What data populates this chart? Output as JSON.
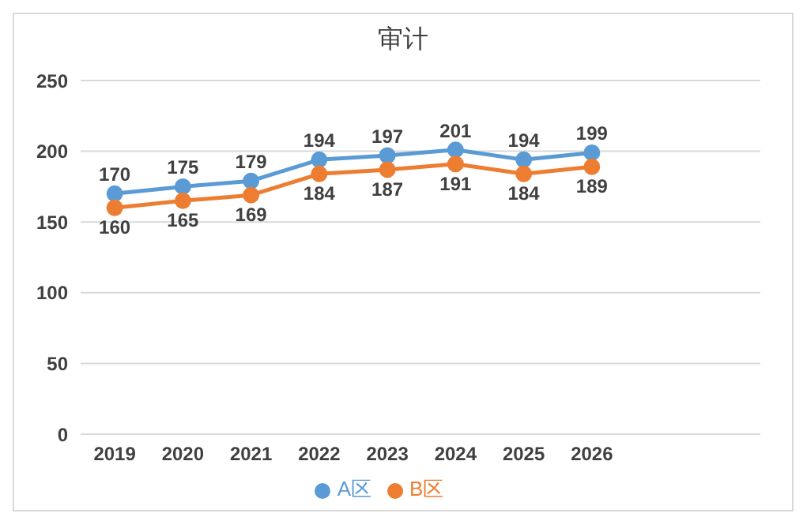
{
  "chart_data": {
    "type": "line",
    "title": "审计",
    "categories": [
      "2019",
      "2020",
      "2021",
      "2022",
      "2023",
      "2024",
      "2025",
      "2026"
    ],
    "series": [
      {
        "name": "A区",
        "color": "#5b9bd5",
        "values": [
          170,
          175,
          179,
          194,
          197,
          201,
          194,
          199
        ]
      },
      {
        "name": "B区",
        "color": "#ed7d31",
        "values": [
          160,
          165,
          169,
          184,
          187,
          191,
          184,
          189
        ]
      }
    ],
    "ylim": [
      0,
      250
    ],
    "yticks": [
      0,
      50,
      100,
      150,
      200,
      250
    ],
    "grid": "y",
    "legend": "bottom",
    "marker": "circle",
    "data_labels": true
  }
}
